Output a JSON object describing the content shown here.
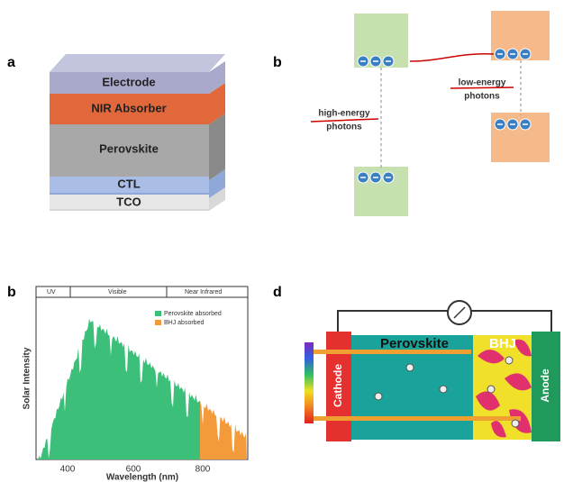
{
  "panels": [
    {
      "label": "a",
      "layers": [
        "Electrode",
        "NIR Absorber",
        "Perovskite",
        "CTL",
        "TCO"
      ]
    },
    {
      "label": "b",
      "annotations": [
        "high-energy",
        "photons",
        "low-energy",
        "photons"
      ]
    },
    {
      "label": "b",
      "regions": [
        "UV",
        "Visible",
        "Near Infrared"
      ],
      "legend": [
        "Perovskite absorbed",
        "BHJ absorbed"
      ],
      "y_label": "Solar Intensity",
      "x_label": "Wavelength (nm)",
      "xticks": [
        "400",
        "600",
        "800"
      ]
    },
    {
      "label": "d",
      "labels": [
        "Perovskite",
        "BHJ",
        "Cathode",
        "Anode"
      ]
    }
  ]
}
